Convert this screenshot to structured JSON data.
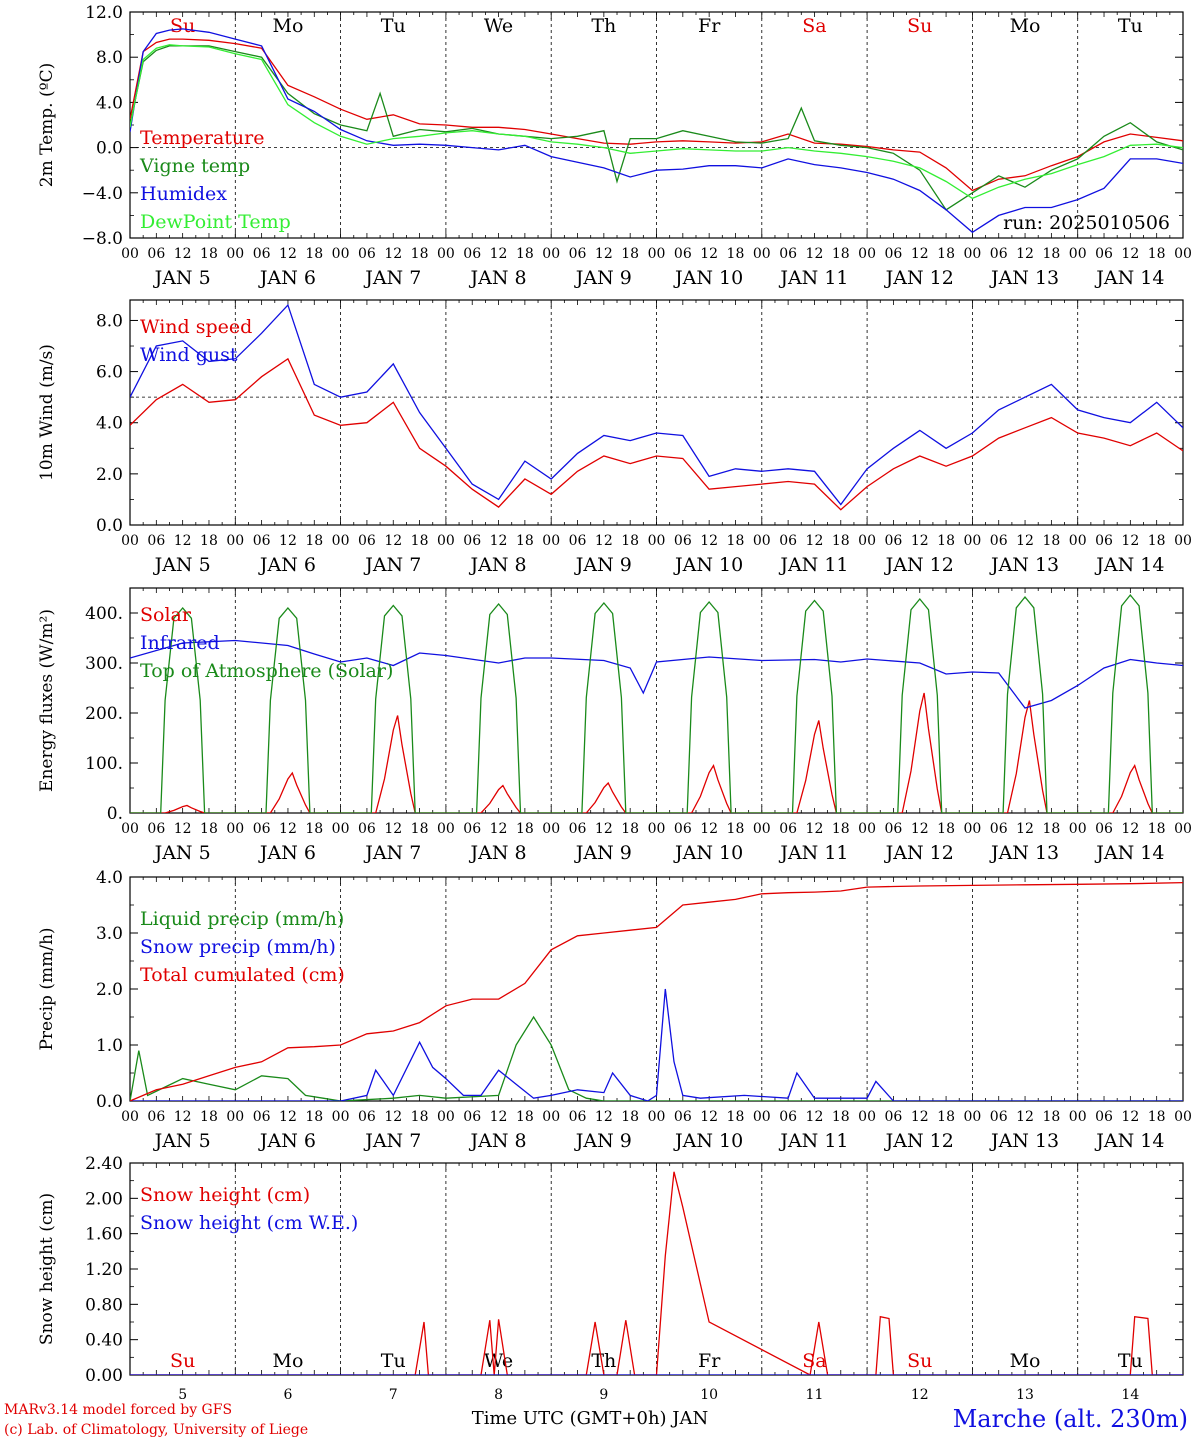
{
  "run_label": "run: 2025010506",
  "credits": [
    "MARv3.14 model forced by GFS",
    "(c) Lab. of Climatology, University of Liege"
  ],
  "station": "Marche (alt. 230m)",
  "xlabel": "Time UTC (GMT+0h) JAN",
  "date_labels": [
    "JAN  5",
    "JAN  6",
    "JAN  7",
    "JAN  8",
    "JAN  9",
    "JAN 10",
    "JAN 11",
    "JAN 12",
    "JAN 13",
    "JAN 14"
  ],
  "hour_labels": [
    "00",
    "06",
    "12",
    "18"
  ],
  "weekdays": [
    {
      "label": "Su",
      "color": "#e00000"
    },
    {
      "label": "Mo",
      "color": "#000000"
    },
    {
      "label": "Tu",
      "color": "#000000"
    },
    {
      "label": "We",
      "color": "#000000"
    },
    {
      "label": "Th",
      "color": "#000000"
    },
    {
      "label": "Fr",
      "color": "#000000"
    },
    {
      "label": "Sa",
      "color": "#e00000"
    },
    {
      "label": "Su",
      "color": "#e00000"
    },
    {
      "label": "Mo",
      "color": "#000000"
    },
    {
      "label": "Tu",
      "color": "#000000"
    }
  ],
  "day_numbers": [
    "5",
    "6",
    "7",
    "8",
    "9",
    "10",
    "11",
    "12",
    "13",
    "14"
  ],
  "colors": {
    "red": "#e00000",
    "green": "#1a8a1a",
    "blue": "#1010e0",
    "lightgreen": "#33ee33"
  },
  "chart_data": [
    {
      "type": "line",
      "ylabel": "2m Temp. (ºC)",
      "ylim": [
        -8,
        12
      ],
      "yticks": [
        "12.0",
        "8.0",
        "4.0",
        "0.0",
        "−4.0",
        "−8.0"
      ],
      "ytick_values": [
        12,
        8,
        4,
        0,
        -4,
        -8
      ],
      "hline": 0,
      "x_unit": "hours since JAN 5 00 UTC",
      "series": [
        {
          "name": "Temperature",
          "color": "#e00000",
          "x": [
            0,
            3,
            6,
            9,
            12,
            18,
            24,
            30,
            36,
            42,
            48,
            54,
            60,
            66,
            72,
            78,
            84,
            90,
            96,
            102,
            108,
            114,
            120,
            126,
            132,
            138,
            144,
            150,
            156,
            162,
            168,
            174,
            180,
            186,
            192,
            198,
            204,
            210,
            216,
            222,
            228,
            234,
            240
          ],
          "y": [
            2.5,
            8.5,
            9.3,
            9.6,
            9.6,
            9.5,
            9.2,
            8.8,
            5.5,
            4.5,
            3.4,
            2.5,
            2.9,
            2.1,
            2.0,
            1.8,
            1.8,
            1.6,
            1.2,
            0.8,
            0.4,
            0.3,
            0.5,
            0.6,
            0.5,
            0.4,
            0.5,
            1.2,
            0.4,
            0.3,
            0.1,
            -0.2,
            -0.4,
            -1.8,
            -3.8,
            -2.8,
            -2.5,
            -1.6,
            -0.8,
            0.5,
            1.2,
            0.9,
            0.6
          ]
        },
        {
          "name": "Vigne temp",
          "color": "#1a8a1a",
          "x": [
            0,
            3,
            6,
            9,
            12,
            18,
            24,
            30,
            36,
            42,
            48,
            54,
            57,
            60,
            66,
            72,
            78,
            84,
            90,
            96,
            102,
            108,
            111,
            114,
            120,
            126,
            132,
            138,
            144,
            150,
            153,
            156,
            162,
            168,
            174,
            180,
            186,
            192,
            198,
            204,
            210,
            216,
            222,
            228,
            234,
            240
          ],
          "y": [
            2.0,
            7.6,
            8.6,
            9.0,
            9.0,
            9.0,
            8.5,
            8.0,
            4.8,
            3.0,
            2.0,
            1.5,
            4.8,
            1.0,
            1.6,
            1.4,
            1.7,
            1.2,
            1.0,
            0.8,
            1.0,
            1.5,
            -3.0,
            0.8,
            0.8,
            1.5,
            1.0,
            0.5,
            0.4,
            0.8,
            3.5,
            0.6,
            0.2,
            0.0,
            -0.5,
            -2.0,
            -5.5,
            -4.0,
            -2.5,
            -3.5,
            -2.0,
            -1.0,
            1.0,
            2.2,
            0.5,
            -0.2
          ]
        },
        {
          "name": "Humidex",
          "color": "#1010e0",
          "x": [
            0,
            3,
            6,
            9,
            12,
            18,
            24,
            30,
            36,
            42,
            48,
            54,
            60,
            66,
            72,
            78,
            84,
            90,
            96,
            102,
            108,
            114,
            120,
            126,
            132,
            138,
            144,
            150,
            156,
            162,
            168,
            174,
            180,
            186,
            192,
            198,
            204,
            210,
            216,
            222,
            228,
            234,
            240
          ],
          "y": [
            1.4,
            8.5,
            10.1,
            10.4,
            10.5,
            10.2,
            9.6,
            9.0,
            4.3,
            3.2,
            1.6,
            0.6,
            0.2,
            0.3,
            0.2,
            0.0,
            -0.2,
            0.2,
            -0.8,
            -1.3,
            -1.8,
            -2.6,
            -2.0,
            -1.9,
            -1.6,
            -1.6,
            -1.8,
            -1.0,
            -1.5,
            -1.8,
            -2.2,
            -2.8,
            -3.8,
            -5.5,
            -7.5,
            -6.0,
            -5.3,
            -5.3,
            -4.6,
            -3.6,
            -1.0,
            -1.0,
            -1.4
          ]
        },
        {
          "name": "DewPoint Temp",
          "color": "#33ee33",
          "x": [
            0,
            3,
            6,
            9,
            12,
            18,
            24,
            30,
            36,
            42,
            48,
            54,
            60,
            66,
            72,
            78,
            84,
            90,
            96,
            102,
            108,
            114,
            120,
            126,
            132,
            138,
            144,
            150,
            156,
            162,
            168,
            174,
            180,
            186,
            192,
            198,
            204,
            210,
            216,
            222,
            228,
            234,
            240
          ],
          "y": [
            1.8,
            7.8,
            8.8,
            9.1,
            9.0,
            8.9,
            8.3,
            7.8,
            3.8,
            2.2,
            1.0,
            0.3,
            0.8,
            1.0,
            1.3,
            1.5,
            1.2,
            1.0,
            0.5,
            0.3,
            0.0,
            -0.5,
            -0.3,
            -0.1,
            -0.2,
            -0.3,
            -0.3,
            0.0,
            -0.3,
            -0.5,
            -0.8,
            -1.2,
            -1.8,
            -3.0,
            -4.5,
            -3.5,
            -2.8,
            -2.3,
            -1.5,
            -0.8,
            0.2,
            0.3,
            0.0
          ]
        }
      ]
    },
    {
      "type": "line",
      "ylabel": "10m Wind (m/s)",
      "ylim": [
        0,
        8.8
      ],
      "yticks": [
        "8.0",
        "6.0",
        "4.0",
        "2.0",
        "0.0"
      ],
      "ytick_values": [
        8,
        6,
        4,
        2,
        0
      ],
      "hline": 5,
      "x_unit": "hours since JAN 5 00 UTC",
      "series": [
        {
          "name": "Wind speed",
          "color": "#e00000",
          "x": [
            0,
            6,
            12,
            18,
            24,
            30,
            36,
            42,
            48,
            54,
            60,
            66,
            72,
            78,
            84,
            90,
            96,
            102,
            108,
            114,
            120,
            126,
            132,
            138,
            144,
            150,
            156,
            162,
            168,
            174,
            180,
            186,
            192,
            198,
            204,
            210,
            216,
            222,
            228,
            234,
            240
          ],
          "y": [
            3.9,
            4.9,
            5.5,
            4.8,
            4.9,
            5.8,
            6.5,
            4.3,
            3.9,
            4.0,
            4.8,
            3.0,
            2.3,
            1.4,
            0.7,
            1.8,
            1.2,
            2.1,
            2.7,
            2.4,
            2.7,
            2.6,
            1.4,
            1.5,
            1.6,
            1.7,
            1.6,
            0.6,
            1.5,
            2.2,
            2.7,
            2.3,
            2.7,
            3.4,
            3.8,
            4.2,
            3.6,
            3.4,
            3.1,
            3.6,
            2.9
          ]
        },
        {
          "name": "Wind gust",
          "color": "#1010e0",
          "x": [
            0,
            6,
            12,
            18,
            24,
            30,
            36,
            42,
            48,
            54,
            60,
            66,
            72,
            78,
            84,
            90,
            96,
            102,
            108,
            114,
            120,
            126,
            132,
            138,
            144,
            150,
            156,
            162,
            168,
            174,
            180,
            186,
            192,
            198,
            204,
            210,
            216,
            222,
            228,
            234,
            240
          ],
          "y": [
            5.0,
            7.0,
            7.2,
            6.4,
            6.5,
            7.5,
            8.6,
            5.5,
            5.0,
            5.2,
            6.3,
            4.4,
            3.0,
            1.6,
            1.0,
            2.5,
            1.8,
            2.8,
            3.5,
            3.3,
            3.6,
            3.5,
            1.9,
            2.2,
            2.1,
            2.2,
            2.1,
            0.8,
            2.2,
            3.0,
            3.7,
            3.0,
            3.6,
            4.5,
            5.0,
            5.5,
            4.5,
            4.2,
            4.0,
            4.8,
            3.8
          ]
        }
      ]
    },
    {
      "type": "line",
      "ylabel": "Energy fluxes (W/m²)",
      "ylim": [
        0,
        450
      ],
      "yticks": [
        "400.",
        "300.",
        "200.",
        "100.",
        "0."
      ],
      "ytick_values": [
        400,
        300,
        200,
        100,
        0
      ],
      "x_unit": "hours since JAN 5 00 UTC",
      "series": [
        {
          "name": "Solar",
          "color": "#e00000",
          "day_peaks": [
            15,
            80,
            195,
            55,
            60,
            95,
            185,
            240,
            225,
            95
          ]
        },
        {
          "name": "Infrared",
          "color": "#1010e0",
          "x": [
            0,
            12,
            24,
            36,
            42,
            48,
            54,
            60,
            66,
            72,
            84,
            90,
            96,
            108,
            114,
            117,
            120,
            132,
            144,
            156,
            162,
            168,
            180,
            186,
            192,
            198,
            204,
            210,
            216,
            222,
            228,
            234,
            240
          ],
          "y": [
            310,
            340,
            345,
            335,
            318,
            302,
            310,
            295,
            320,
            315,
            300,
            310,
            310,
            305,
            290,
            240,
            302,
            312,
            305,
            307,
            302,
            308,
            300,
            278,
            282,
            280,
            210,
            225,
            255,
            290,
            307,
            300,
            295
          ]
        },
        {
          "name": "Top of Atmosphere (Solar)",
          "color": "#1a8a1a",
          "day_peaks": [
            410,
            410,
            415,
            418,
            420,
            422,
            425,
            428,
            432,
            436
          ]
        }
      ]
    },
    {
      "type": "line",
      "ylabel": "Precip (mm/h)",
      "ylim": [
        0,
        4
      ],
      "yticks": [
        "4.0",
        "3.0",
        "2.0",
        "1.0",
        "0.0"
      ],
      "ytick_values": [
        4,
        3,
        2,
        1,
        0
      ],
      "x_unit": "hours since JAN 5 00 UTC",
      "series": [
        {
          "name": "Liquid precip (mm/h)",
          "color": "#1a8a1a",
          "x": [
            0,
            2,
            4,
            8,
            12,
            18,
            24,
            30,
            36,
            40,
            44,
            48,
            60,
            66,
            72,
            84,
            88,
            92,
            96,
            100,
            104,
            108,
            120,
            240
          ],
          "y": [
            0,
            0.9,
            0.1,
            0.25,
            0.4,
            0.3,
            0.2,
            0.45,
            0.4,
            0.1,
            0.05,
            0.0,
            0.05,
            0.1,
            0.05,
            0.1,
            1.0,
            1.5,
            1.0,
            0.2,
            0.05,
            0.0,
            0.0,
            0.0
          ]
        },
        {
          "name": "Snow precip (mm/h)",
          "color": "#1010e0",
          "x": [
            0,
            48,
            54,
            56,
            60,
            66,
            69,
            72,
            76,
            80,
            84,
            88,
            92,
            96,
            102,
            108,
            110,
            114,
            118,
            120,
            122,
            124,
            126,
            130,
            140,
            150,
            152,
            156,
            162,
            168,
            170,
            174,
            180,
            240
          ],
          "y": [
            0,
            0,
            0.1,
            0.55,
            0.1,
            1.05,
            0.6,
            0.4,
            0.1,
            0.1,
            0.55,
            0.3,
            0.05,
            0.1,
            0.2,
            0.15,
            0.5,
            0.1,
            0.0,
            0.1,
            2.0,
            0.7,
            0.1,
            0.05,
            0.1,
            0.05,
            0.5,
            0.05,
            0.05,
            0.05,
            0.35,
            0.0,
            0.0,
            0.0
          ]
        },
        {
          "name": "Total cumulated (cm)",
          "color": "#e00000",
          "x": [
            0,
            6,
            12,
            18,
            24,
            30,
            36,
            42,
            48,
            54,
            60,
            66,
            72,
            78,
            84,
            90,
            96,
            102,
            108,
            114,
            120,
            126,
            132,
            138,
            144,
            150,
            156,
            162,
            168,
            174,
            180,
            192,
            204,
            216,
            228,
            240
          ],
          "y": [
            0,
            0.2,
            0.3,
            0.45,
            0.6,
            0.7,
            0.95,
            0.97,
            1.0,
            1.2,
            1.25,
            1.4,
            1.7,
            1.82,
            1.82,
            2.1,
            2.7,
            2.95,
            3.0,
            3.05,
            3.1,
            3.5,
            3.55,
            3.6,
            3.7,
            3.72,
            3.73,
            3.75,
            3.82,
            3.83,
            3.84,
            3.85,
            3.86,
            3.87,
            3.88,
            3.9
          ]
        }
      ]
    },
    {
      "type": "line",
      "ylabel": "Snow height (cm)",
      "ylim": [
        0,
        2.4
      ],
      "yticks": [
        "2.40",
        "2.00",
        "1.60",
        "1.20",
        "0.80",
        "0.40",
        "0.00"
      ],
      "ytick_values": [
        2.4,
        2.0,
        1.6,
        1.2,
        0.8,
        0.4,
        0.0
      ],
      "x_unit": "hours since JAN 5 00 UTC",
      "series": [
        {
          "name": "Snow height (cm)",
          "color": "#e00000",
          "x": [
            0,
            65,
            67,
            68,
            70,
            80,
            82,
            83,
            84,
            86,
            88,
            104,
            106,
            108,
            111,
            113,
            115,
            120,
            122,
            124,
            126,
            132,
            155,
            157,
            159,
            170,
            171,
            173,
            174,
            176,
            228,
            229,
            232,
            233,
            240
          ],
          "y": [
            0,
            0,
            0.6,
            0,
            0,
            0,
            0.62,
            0,
            0.63,
            0,
            0,
            0,
            0.6,
            0,
            0,
            0.62,
            0,
            0,
            1.35,
            2.3,
            1.9,
            0.6,
            0,
            0.6,
            0,
            0,
            0.66,
            0.64,
            0,
            0,
            0,
            0.66,
            0.64,
            0,
            0
          ]
        },
        {
          "name": "Snow height (cm W.E.)",
          "color": "#1010e0",
          "x": [
            0,
            240
          ],
          "y": [
            0,
            0
          ]
        }
      ]
    }
  ]
}
